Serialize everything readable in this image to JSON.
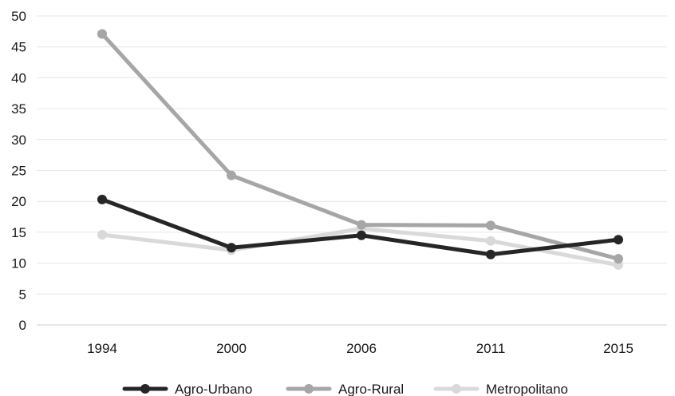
{
  "chart_data": {
    "type": "line",
    "x": [
      "1994",
      "2000",
      "2006",
      "2011",
      "2015"
    ],
    "series": [
      {
        "name": "Agro-Urbano",
        "values": [
          20.3,
          12.5,
          14.5,
          11.4,
          13.8
        ],
        "color": "#262626"
      },
      {
        "name": "Agro-Rural",
        "values": [
          47.1,
          24.2,
          16.2,
          16.1,
          10.7
        ],
        "color": "#a6a6a6"
      },
      {
        "name": "Metropolitano",
        "values": [
          14.6,
          12.1,
          15.6,
          13.6,
          9.7
        ],
        "color": "#d9d9d9"
      }
    ],
    "y_ticks": [
      0,
      5,
      10,
      15,
      20,
      25,
      30,
      35,
      40,
      45,
      50
    ],
    "ylim": [
      0,
      50
    ],
    "grid": true,
    "legend_position": "bottom"
  }
}
